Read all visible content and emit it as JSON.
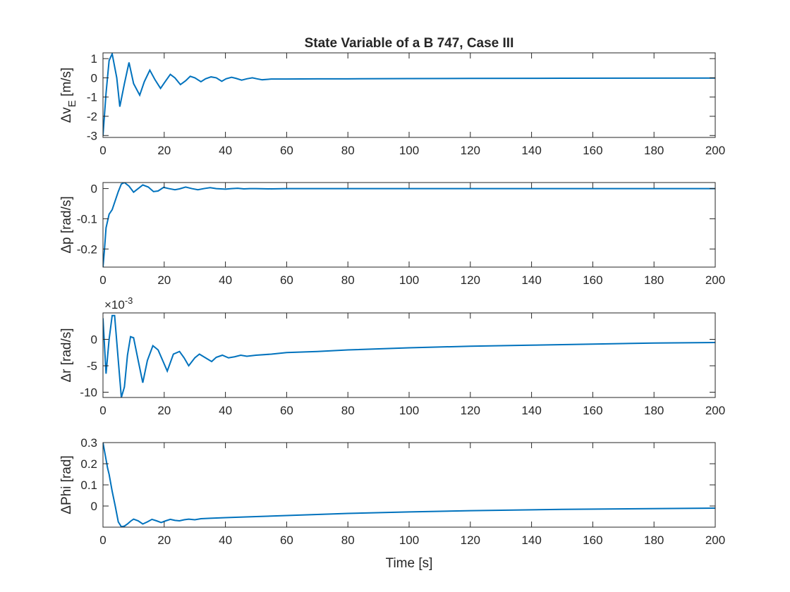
{
  "figure": {
    "title": "State Variable of a B 747, Case III",
    "xlabel": "Time [s]"
  },
  "chart_data": [
    {
      "type": "line",
      "ylabel": {
        "main": "Δv",
        "sub": "E",
        "rest": " [m/s]"
      },
      "xlim": [
        0,
        200
      ],
      "ylim": [
        -3.1,
        1.3
      ],
      "xticks": [
        0,
        20,
        40,
        60,
        80,
        100,
        120,
        140,
        160,
        180,
        200
      ],
      "yticks": [
        1,
        0,
        -1,
        -2,
        -3
      ],
      "exponent": "",
      "color": "#0072BD",
      "series": [
        {
          "x": [
            0,
            1,
            2,
            3,
            4.5,
            5.5,
            7,
            8.5,
            10,
            12,
            13.5,
            15.3,
            17,
            18.8,
            20.3,
            22,
            23.5,
            25.3,
            27,
            28.5,
            30,
            32,
            33.5,
            35.3,
            37,
            38.8,
            40.2,
            42,
            43.5,
            45.3,
            47,
            48.8,
            50.3,
            52,
            55,
            60,
            70,
            80,
            100,
            120,
            150,
            200
          ],
          "y": [
            -3.0,
            -0.8,
            0.9,
            1.25,
            0.0,
            -1.5,
            -0.3,
            0.8,
            -0.3,
            -0.9,
            -0.2,
            0.4,
            -0.1,
            -0.55,
            -0.2,
            0.18,
            0.0,
            -0.35,
            -0.15,
            0.08,
            0.0,
            -0.2,
            -0.05,
            0.05,
            0.0,
            -0.18,
            -0.05,
            0.03,
            -0.03,
            -0.12,
            -0.05,
            0.0,
            -0.05,
            -0.1,
            -0.06,
            -0.06,
            -0.05,
            -0.05,
            -0.04,
            -0.03,
            -0.02,
            -0.01
          ]
        }
      ]
    },
    {
      "type": "line",
      "ylabel": {
        "main": "Δp",
        "sub": "",
        "rest": " [rad/s]"
      },
      "xlim": [
        0,
        200
      ],
      "ylim": [
        -0.26,
        0.02
      ],
      "xticks": [
        0,
        20,
        40,
        60,
        80,
        100,
        120,
        140,
        160,
        180,
        200
      ],
      "yticks": [
        0,
        -0.1,
        -0.2
      ],
      "exponent": "",
      "color": "#0072BD",
      "series": [
        {
          "x": [
            0,
            0.5,
            1,
            2,
            3,
            4,
            5,
            6,
            7,
            8.5,
            10,
            11.5,
            13,
            14.8,
            16.5,
            18,
            19.8,
            21.5,
            23.5,
            25,
            27,
            29,
            31,
            33,
            35,
            37,
            40,
            42,
            44,
            46,
            48,
            50,
            55,
            60,
            80,
            120,
            200
          ],
          "y": [
            -0.26,
            -0.2,
            -0.13,
            -0.085,
            -0.07,
            -0.04,
            -0.01,
            0.015,
            0.02,
            0.008,
            -0.012,
            0.0,
            0.012,
            0.005,
            -0.01,
            -0.008,
            0.004,
            0.0,
            -0.004,
            -0.001,
            0.005,
            0.0,
            -0.004,
            0.0,
            0.003,
            0.0,
            -0.002,
            0.0,
            0.001,
            -0.001,
            0.0,
            0.0,
            -0.001,
            0.0,
            0.0,
            0.0,
            0.0
          ]
        }
      ]
    },
    {
      "type": "line",
      "ylabel": {
        "main": "Δr",
        "sub": "",
        "rest": " [rad/s]"
      },
      "xlim": [
        0,
        200
      ],
      "ylim": [
        -0.011,
        0.005
      ],
      "xticks": [
        0,
        20,
        40,
        60,
        80,
        100,
        120,
        140,
        160,
        180,
        200
      ],
      "yticks": [
        0,
        -0.005,
        -0.01
      ],
      "ytick_labels": [
        "0",
        "-5",
        "-10"
      ],
      "exponent": "×10–3",
      "exponent_sup": "-3",
      "color": "#0072BD",
      "series": [
        {
          "x": [
            0,
            1,
            2,
            3,
            3.8,
            5,
            6,
            7,
            8,
            9,
            10,
            11.5,
            13,
            14.5,
            16.3,
            18,
            19.5,
            21,
            23,
            25,
            26.5,
            28,
            30,
            31.5,
            33.5,
            35.5,
            37,
            39,
            41,
            43,
            45,
            47,
            50,
            55,
            60,
            70,
            80,
            100,
            120,
            140,
            160,
            180,
            200
          ],
          "y": [
            0.004,
            -0.0065,
            0.0,
            0.0045,
            0.0045,
            -0.004,
            -0.011,
            -0.009,
            -0.003,
            0.0005,
            0.0003,
            -0.004,
            -0.0082,
            -0.004,
            -0.0012,
            -0.002,
            -0.004,
            -0.006,
            -0.0028,
            -0.0023,
            -0.0035,
            -0.005,
            -0.0035,
            -0.0028,
            -0.0035,
            -0.0042,
            -0.0034,
            -0.003,
            -0.0035,
            -0.0033,
            -0.003,
            -0.0032,
            -0.003,
            -0.0028,
            -0.0025,
            -0.0023,
            -0.002,
            -0.0016,
            -0.0013,
            -0.0011,
            -0.0009,
            -0.0007,
            -0.0006
          ]
        }
      ]
    },
    {
      "type": "line",
      "ylabel": {
        "main": "ΔPhi",
        "sub": "",
        "rest": " [rad]"
      },
      "xlim": [
        0,
        200
      ],
      "ylim": [
        -0.1,
        0.3
      ],
      "xticks": [
        0,
        20,
        40,
        60,
        80,
        100,
        120,
        140,
        160,
        180,
        200
      ],
      "yticks": [
        0.3,
        0.2,
        0.1,
        0
      ],
      "exponent": "",
      "color": "#0072BD",
      "series": [
        {
          "x": [
            0,
            0.5,
            1,
            1.5,
            2,
            3,
            4,
            5,
            6,
            7,
            8,
            9,
            10,
            11.5,
            13,
            14.5,
            16,
            17.5,
            19,
            20.5,
            22,
            23.5,
            25,
            26.5,
            28,
            30,
            32,
            35,
            40,
            50,
            60,
            80,
            100,
            120,
            150,
            200
          ],
          "y": [
            0.3,
            0.26,
            0.22,
            0.18,
            0.15,
            0.07,
            0.0,
            -0.075,
            -0.098,
            -0.095,
            -0.085,
            -0.072,
            -0.062,
            -0.07,
            -0.085,
            -0.075,
            -0.063,
            -0.07,
            -0.078,
            -0.07,
            -0.063,
            -0.068,
            -0.07,
            -0.065,
            -0.062,
            -0.065,
            -0.06,
            -0.058,
            -0.055,
            -0.05,
            -0.045,
            -0.035,
            -0.028,
            -0.022,
            -0.016,
            -0.01
          ]
        }
      ]
    }
  ]
}
